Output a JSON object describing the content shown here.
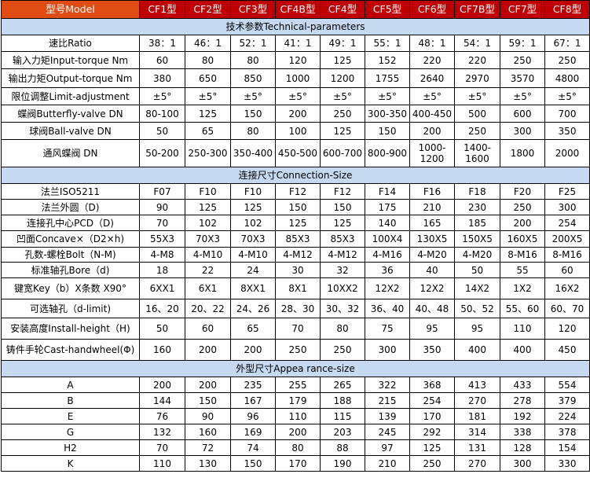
{
  "header": {
    "model_label": "型号Model",
    "models": [
      "CF1型",
      "CF2型",
      "CF3型",
      "CF4B型",
      "CF4型",
      "CF5型",
      "CF6型",
      "CF7B型",
      "CF7型",
      "CF8型"
    ]
  },
  "colors": {
    "header_first": "#e04c14",
    "header": "#c00000",
    "section": "#c5d9f1"
  },
  "sections": [
    {
      "title": "技术参数Technical-parameters",
      "rows": [
        {
          "label": "速比Ratio",
          "values": [
            "38：1",
            "46：1",
            "52：1",
            "41：1",
            "49：1",
            "55：1",
            "48：1",
            "54：1",
            "59：1",
            "67：1"
          ]
        },
        {
          "label": "输入力矩Input-torque Nm",
          "values": [
            "60",
            "80",
            "80",
            "120",
            "125",
            "152",
            "220",
            "220",
            "250",
            "250"
          ]
        },
        {
          "label": "输出力矩Output-torque Nm",
          "values": [
            "380",
            "650",
            "850",
            "1000",
            "1200",
            "1755",
            "2640",
            "2970",
            "3570",
            "4800"
          ]
        },
        {
          "label": "限位调整Limit-adjustment",
          "values": [
            "±5°",
            "±5°",
            "±5°",
            "±5°",
            "±5°",
            "±5°",
            "±5°",
            "±5°",
            "±5°",
            "±5°"
          ]
        },
        {
          "label": "蝶阀Butterfly-valve DN",
          "values": [
            "80-100",
            "125",
            "150",
            "200",
            "250",
            "300-350",
            "400-450",
            "500",
            "600",
            "700"
          ]
        },
        {
          "label": "球阀Ball-valve DN",
          "values": [
            "50",
            "65",
            "80",
            "100",
            "125",
            "150",
            "200",
            "250",
            "300",
            "350"
          ]
        },
        {
          "label": "通风蝶阀  DN",
          "values": [
            "50-200",
            "250-300",
            "350-400",
            "450-500",
            "600-700",
            "800-900",
            "1000-1200",
            "1400-1600",
            "1800",
            "2000"
          ]
        }
      ]
    },
    {
      "title": "连接尺寸Connection-Size",
      "rows": [
        {
          "label": "法兰ISO5211",
          "values": [
            "F07",
            "F10",
            "F10",
            "F12",
            "F12",
            "F14",
            "F16",
            "F18",
            "F20",
            "F25"
          ]
        },
        {
          "label": "法兰外圆（D)",
          "values": [
            "90",
            "125",
            "125",
            "150",
            "150",
            "175",
            "210",
            "230",
            "250",
            "300"
          ]
        },
        {
          "label": "连接孔中心PCD（D)",
          "values": [
            "70",
            "102",
            "102",
            "125",
            "125",
            "140",
            "165",
            "185",
            "200",
            "254"
          ]
        },
        {
          "label": "凹面Concave×（D2×h)",
          "values": [
            "55X3",
            "70X3",
            "70X3",
            "85X3",
            "85X3",
            "100X4",
            "130X5",
            "150X5",
            "160X5",
            "200X5"
          ]
        },
        {
          "label": "孔数-螺栓Bolt（N-M)",
          "values": [
            "4-M8",
            "4-M10",
            "4-M10",
            "4-M12",
            "4-M12",
            "4-M16",
            "4-M20",
            "4-M20",
            "8-M16",
            "8-M16"
          ]
        },
        {
          "label": "标准轴孔Bore（d)",
          "values": [
            "18",
            "22",
            "24",
            "30",
            "32",
            "36",
            "40",
            "50",
            "55",
            "60"
          ]
        },
        {
          "label": "键宽Key（b）X条数 X90°",
          "values": [
            "6XX1",
            "6X1",
            "8XX1",
            "8X1",
            "10XX2",
            "12X2",
            "12X2",
            "14X2",
            "1X2",
            "16X2"
          ]
        },
        {
          "label": "可选轴孔（d-limit)",
          "values": [
            "16、20",
            "20、22",
            "24、26",
            "28、30",
            "30、32",
            "36、40",
            "40、48",
            "50、52",
            "55、60",
            "60、70"
          ]
        },
        {
          "label": "安装高度Install-height（H)",
          "values": [
            "50",
            "60",
            "65",
            "70",
            "80",
            "75",
            "95",
            "95",
            "110",
            "120"
          ]
        },
        {
          "label": "铸件手轮Cast-handwheel(Φ)",
          "values": [
            "160",
            "200",
            "200",
            "250",
            "250",
            "300",
            "350",
            "400",
            "400",
            "450"
          ]
        }
      ]
    },
    {
      "title": "外型尺寸Appea rance-size",
      "rows": [
        {
          "label": "A",
          "values": [
            "200",
            "200",
            "235",
            "255",
            "265",
            "322",
            "368",
            "413",
            "433",
            "554"
          ]
        },
        {
          "label": "B",
          "values": [
            "144",
            "150",
            "167",
            "179",
            "188",
            "215",
            "254",
            "270",
            "278",
            "379"
          ]
        },
        {
          "label": "E",
          "values": [
            "76",
            "90",
            "96",
            "110",
            "115",
            "139",
            "170",
            "181",
            "192",
            "224"
          ]
        },
        {
          "label": "G",
          "values": [
            "132",
            "160",
            "169",
            "200",
            "203",
            "245",
            "292",
            "314",
            "338",
            "378"
          ]
        },
        {
          "label": "H2",
          "values": [
            "70",
            "72",
            "74",
            "80",
            "88",
            "97",
            "125",
            "131",
            "128",
            "154"
          ]
        },
        {
          "label": "K",
          "values": [
            "110",
            "130",
            "150",
            "170",
            "190",
            "210",
            "250",
            "270",
            "300",
            "330"
          ]
        }
      ]
    }
  ]
}
